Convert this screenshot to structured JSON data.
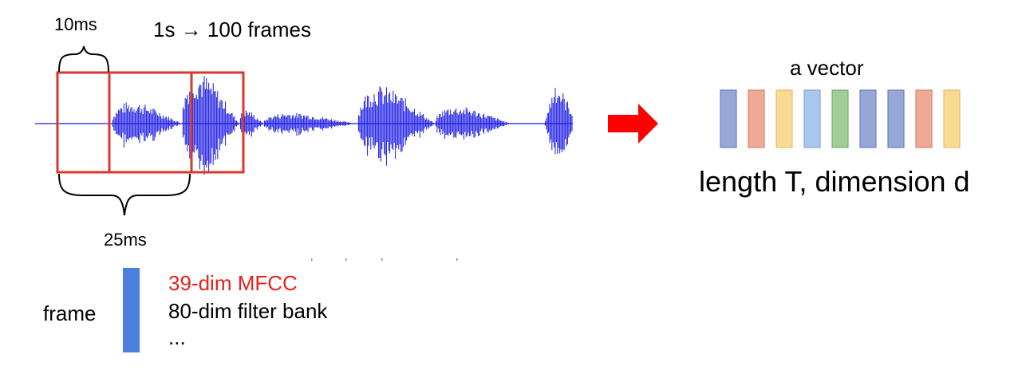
{
  "labels": {
    "window_shift": "10ms",
    "frame_rate": "1s → 100 frames",
    "window_length": "25ms",
    "frame": "frame",
    "vector": "a vector",
    "shape": "length T, dimension d"
  },
  "features": [
    {
      "text": "39-dim MFCC",
      "color": "#e8221b"
    },
    {
      "text": "80-dim filter bank",
      "color": "#000000"
    },
    {
      "text": "...",
      "color": "#000000"
    }
  ],
  "colors": {
    "waveform": "#1a1ae6",
    "frame_box": "#d9372e",
    "arrow": "#ff0000",
    "frame_bar": "#4a7fe0"
  },
  "vector_colors": [
    {
      "fill": "#96a6d6",
      "stroke": "#6f82c0"
    },
    {
      "fill": "#f0a994",
      "stroke": "#d9866d"
    },
    {
      "fill": "#f9da93",
      "stroke": "#e7c06a"
    },
    {
      "fill": "#a9c6ec",
      "stroke": "#86a8d6"
    },
    {
      "fill": "#9fcc97",
      "stroke": "#7bb072"
    },
    {
      "fill": "#96a6d6",
      "stroke": "#6f82c0"
    },
    {
      "fill": "#96a6d6",
      "stroke": "#6f82c0"
    },
    {
      "fill": "#f0a994",
      "stroke": "#d9866d"
    },
    {
      "fill": "#f9da93",
      "stroke": "#e7c06a"
    }
  ]
}
